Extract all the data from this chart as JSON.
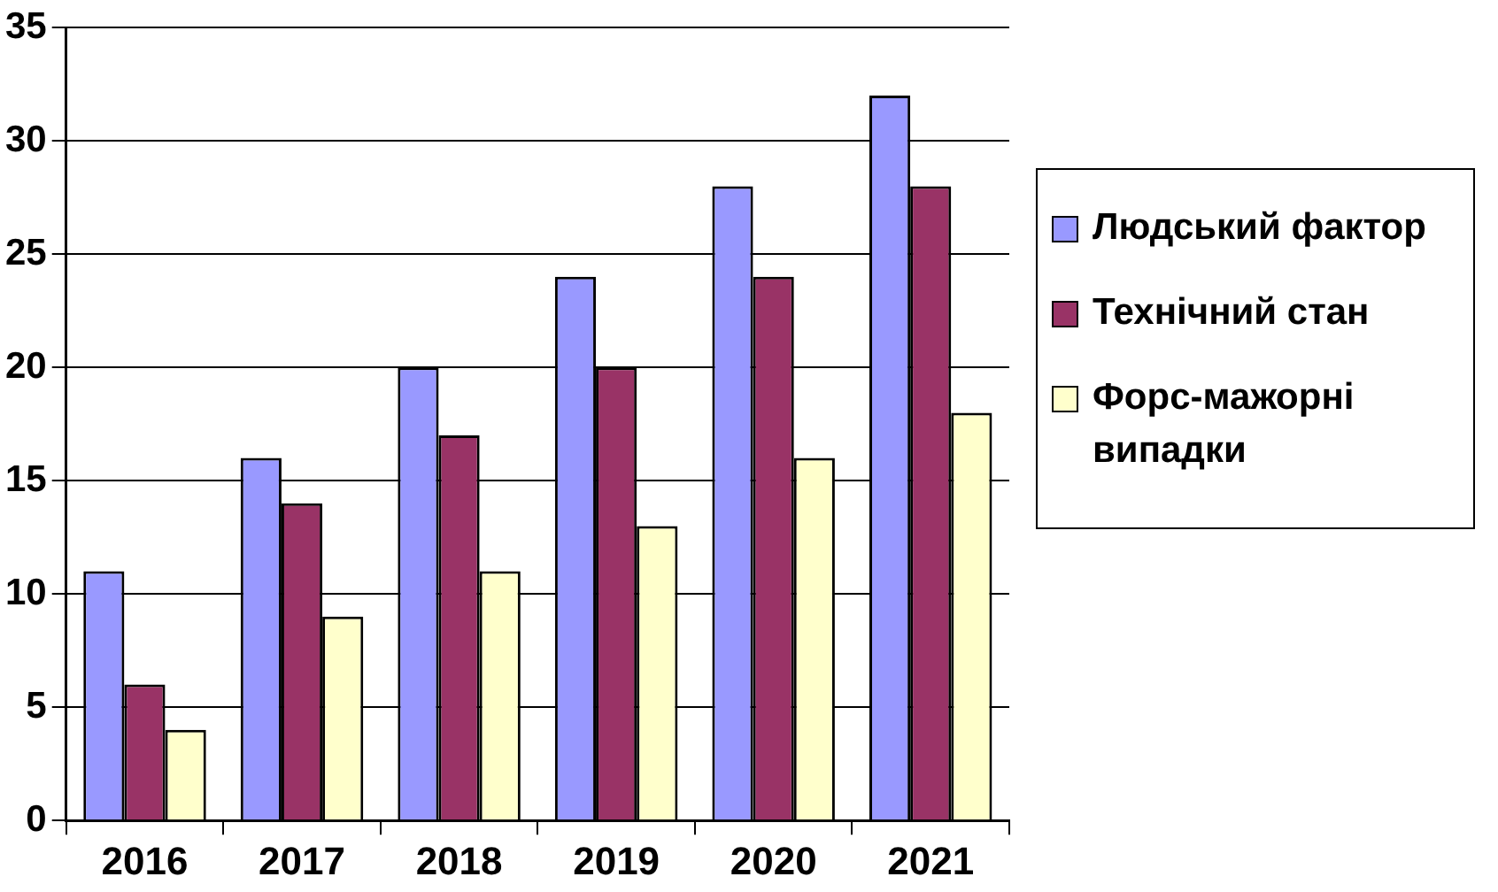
{
  "chart_data": {
    "type": "bar",
    "categories": [
      "2016",
      "2017",
      "2018",
      "2019",
      "2020",
      "2021"
    ],
    "series": [
      {
        "name": "Людський фактор",
        "color": "#9999ff",
        "values": [
          11,
          16,
          20,
          24,
          28,
          32
        ]
      },
      {
        "name": "Технічний стан",
        "color": "#993366",
        "values": [
          6,
          14,
          17,
          20,
          24,
          28
        ]
      },
      {
        "name": "Форс-мажорні випадки",
        "color": "#ffffcc",
        "values": [
          4,
          9,
          11,
          13,
          16,
          18
        ]
      }
    ],
    "ylim": [
      0,
      35
    ],
    "yticks": [
      0,
      5,
      10,
      15,
      20,
      25,
      30,
      35
    ],
    "grid": "y",
    "legend": "right"
  }
}
